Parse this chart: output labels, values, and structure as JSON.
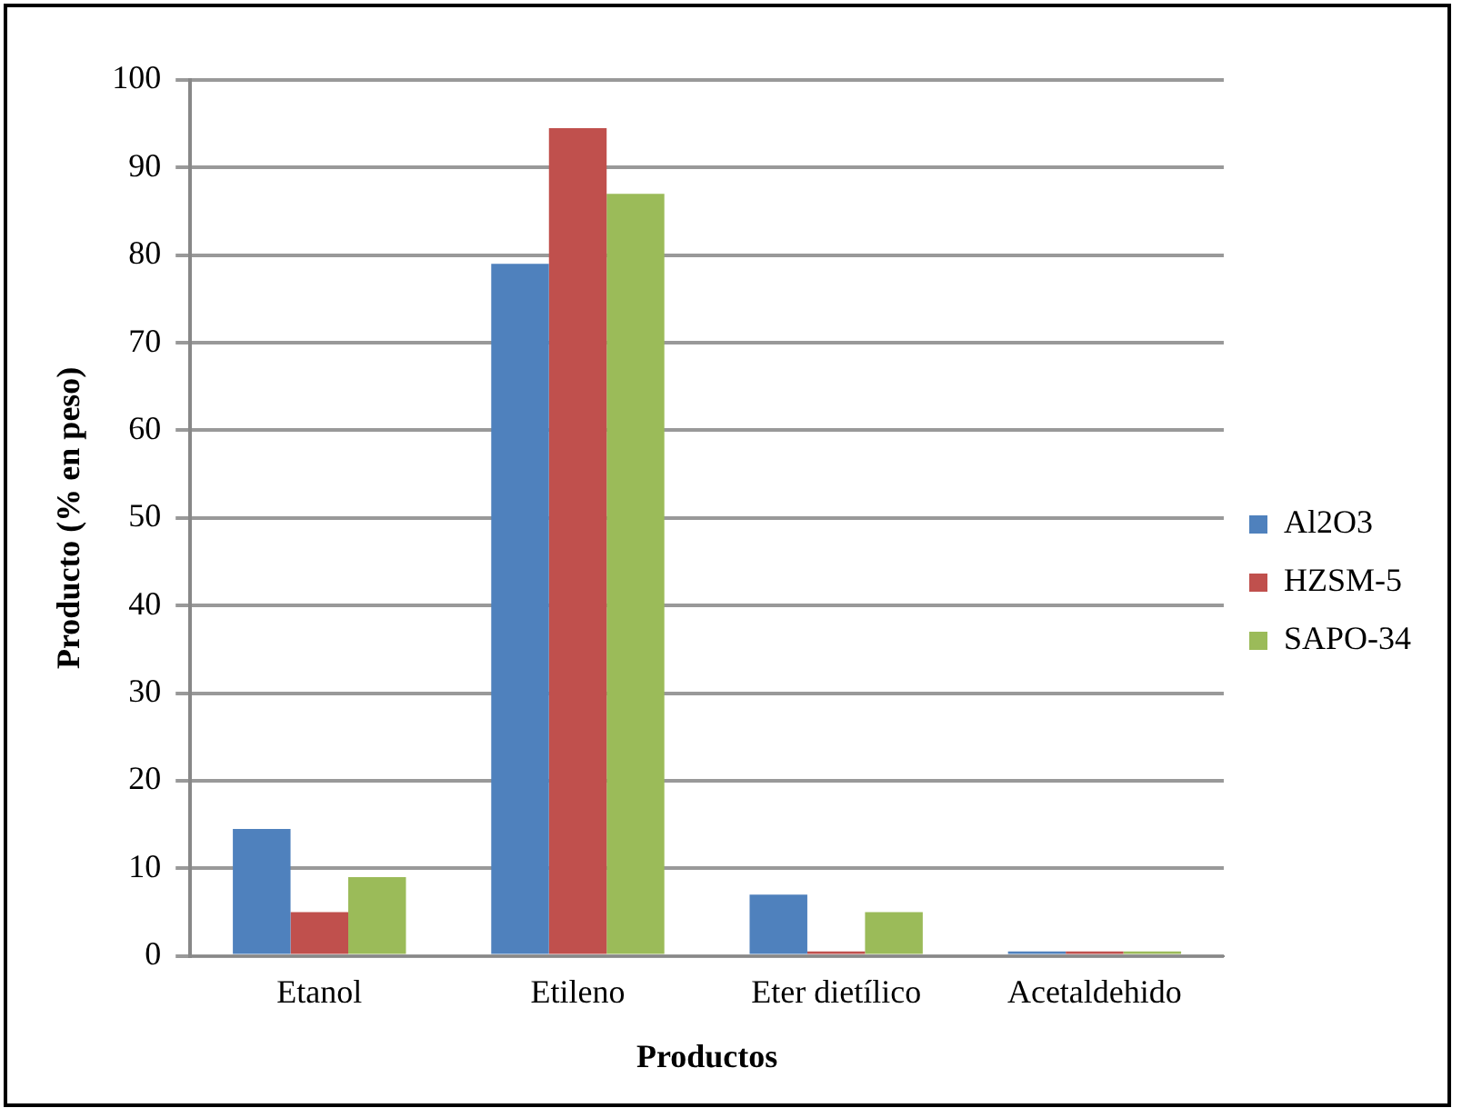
{
  "chart_data": {
    "type": "bar",
    "xlabel": "Productos",
    "ylabel": "Producto (% en peso)",
    "categories": [
      "Etanol",
      "Etileno",
      "Eter dietílico",
      "Acetaldehido"
    ],
    "series": [
      {
        "name": "Al2O3",
        "color": "#4f81bd",
        "values": [
          14.5,
          79,
          7,
          0.5
        ]
      },
      {
        "name": "HZSM-5",
        "color": "#c0504d",
        "values": [
          5,
          94.5,
          0.5,
          0.5
        ]
      },
      {
        "name": "SAPO-34",
        "color": "#9bbb59",
        "values": [
          9,
          87,
          5,
          0.5
        ]
      }
    ],
    "ylim": [
      0,
      100
    ],
    "yticks": [
      0,
      10,
      20,
      30,
      40,
      50,
      60,
      70,
      80,
      90,
      100
    ],
    "grid": "y",
    "legend": "right"
  }
}
